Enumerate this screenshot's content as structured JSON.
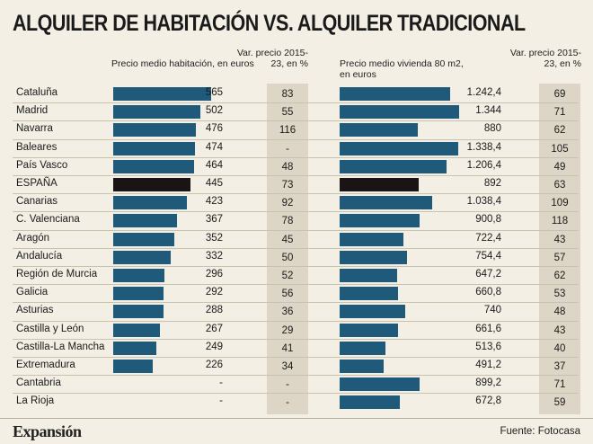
{
  "title": "ALQUILER DE HABITACIÓN VS. ALQUILER TRADICIONAL",
  "footer": {
    "logo": "Expansión",
    "source": "Fuente: Fotocasa"
  },
  "colors": {
    "bar": "#1f5a7a",
    "highlight_bar": "#1a1514",
    "var_column": "#ddd6c6",
    "background": "#f3efe4"
  },
  "chart_data": [
    {
      "type": "bar",
      "orientation": "horizontal",
      "title": "Precio medio habitación, en euros",
      "var_header": "Var. precio 2015-23, en %",
      "highlight": "ESPAÑA",
      "xlim": [
        0,
        600
      ],
      "categories": [
        "Cataluña",
        "Madrid",
        "Navarra",
        "Baleares",
        "País Vasco",
        "ESPAÑA",
        "Canarias",
        "C. Valenciana",
        "Aragón",
        "Andalucía",
        "Región de Murcia",
        "Galicia",
        "Asturias",
        "Castilla y León",
        "Castilla-La Mancha",
        "Extremadura",
        "Cantabria",
        "La Rioja"
      ],
      "values": [
        565,
        502,
        476,
        474,
        464,
        445,
        423,
        367,
        352,
        332,
        296,
        292,
        288,
        267,
        249,
        226,
        null,
        null
      ],
      "labels": [
        "565",
        "502",
        "476",
        "474",
        "464",
        "445",
        "423",
        "367",
        "352",
        "332",
        "296",
        "292",
        "288",
        "267",
        "249",
        "226",
        "-",
        "-"
      ],
      "var": [
        "83",
        "55",
        "116",
        "-",
        "48",
        "73",
        "92",
        "78",
        "45",
        "50",
        "52",
        "56",
        "36",
        "29",
        "41",
        "34",
        "-",
        "-"
      ]
    },
    {
      "type": "bar",
      "orientation": "horizontal",
      "title": "Precio medio vivienda 80 m2, en euros",
      "var_header": "Var. precio 2015-23, en %",
      "highlight": "ESPAÑA",
      "xlim": [
        0,
        1400
      ],
      "categories": [
        "Cataluña",
        "Madrid",
        "Navarra",
        "Baleares",
        "País Vasco",
        "ESPAÑA",
        "Canarias",
        "C. Valenciana",
        "Aragón",
        "Andalucía",
        "Región de Murcia",
        "Galicia",
        "Asturias",
        "Castilla y León",
        "Castilla-La Mancha",
        "Extremadura",
        "Cantabria",
        "La Rioja"
      ],
      "values": [
        1242.4,
        1344,
        880,
        1338.4,
        1206.4,
        892,
        1038.4,
        900.8,
        722.4,
        754.4,
        647.2,
        660.8,
        740,
        661.6,
        513.6,
        491.2,
        899.2,
        672.8
      ],
      "labels": [
        "1.242,4",
        "1.344",
        "880",
        "1.338,4",
        "1.206,4",
        "892",
        "1.038,4",
        "900,8",
        "722,4",
        "754,4",
        "647,2",
        "660,8",
        "740",
        "661,6",
        "513,6",
        "491,2",
        "899,2",
        "672,8"
      ],
      "var": [
        "69",
        "71",
        "62",
        "105",
        "49",
        "63",
        "109",
        "118",
        "43",
        "57",
        "62",
        "53",
        "48",
        "43",
        "40",
        "37",
        "71",
        "59"
      ]
    }
  ]
}
